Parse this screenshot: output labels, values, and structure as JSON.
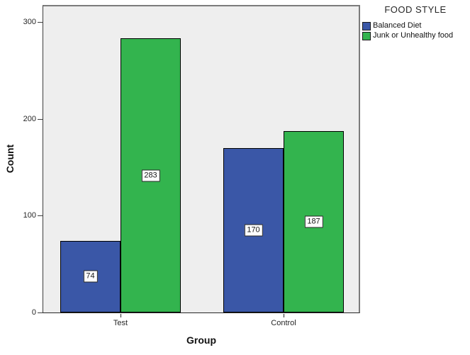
{
  "chart_data": {
    "type": "bar",
    "title": "",
    "categories": [
      "Test",
      "Control"
    ],
    "series": [
      {
        "name": "Balanced Diet",
        "color": "#3A57A7",
        "values": [
          74,
          170
        ]
      },
      {
        "name": "Junk or Unhealthy food",
        "color": "#33B44E",
        "values": [
          283,
          187
        ]
      }
    ],
    "xlabel": "Group",
    "ylabel": "Count",
    "yticks": [
      0,
      100,
      200,
      300
    ],
    "ylim": [
      0,
      318
    ],
    "grid": false,
    "show_value_labels": true,
    "value_label_style": "white-box",
    "plot_background": "#EEEEEE",
    "legend": {
      "title": "FOOD STYLE",
      "position": "outside-top-right",
      "entries": [
        {
          "label": "Balanced Diet",
          "color": "#3A57A7"
        },
        {
          "label": "Junk or Unhealthy food",
          "color": "#33B44E"
        }
      ]
    }
  }
}
